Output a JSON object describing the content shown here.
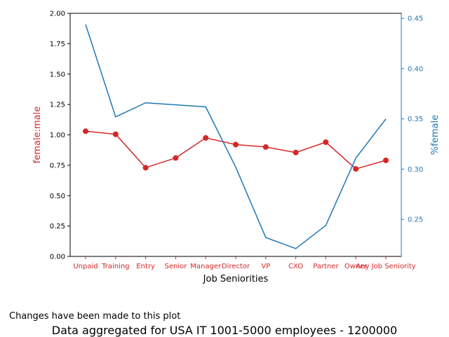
{
  "chart_data": {
    "type": "line",
    "categories": [
      "Unpaid",
      "Training",
      "Entry",
      "Senior",
      "Manager",
      "Director",
      "VP",
      "CXO",
      "Partner",
      "Owner",
      "Any Job Seniority"
    ],
    "xlabel": "Job Seniorities",
    "series": [
      {
        "axis": "left",
        "color": "#d62728",
        "marker": "circle",
        "values": [
          1.03,
          1.005,
          0.73,
          0.81,
          0.975,
          0.92,
          0.9,
          0.855,
          0.94,
          0.72,
          0.79
        ]
      },
      {
        "axis": "right",
        "color": "#1f77b4",
        "marker": "none",
        "values": [
          0.444,
          0.352,
          0.366,
          0.364,
          0.362,
          0.302,
          0.232,
          0.221,
          0.244,
          0.311,
          0.35
        ]
      }
    ],
    "y_left": {
      "label": "female:male",
      "color": "#d62728",
      "lim": [
        0,
        2.0
      ],
      "ticks": [
        "0.00",
        "0.25",
        "0.50",
        "0.75",
        "1.00",
        "1.25",
        "1.50",
        "1.75",
        "2.00"
      ]
    },
    "y_right": {
      "label": "%female",
      "color": "#1f77b4",
      "lim": [
        0.2132,
        0.455
      ],
      "ticks": [
        "0.25",
        "0.30",
        "0.35",
        "0.40",
        "0.45"
      ]
    },
    "grid": false
  },
  "note": "Changes have been made to this plot",
  "subtitle": "Data aggregated for USA IT 1001-5000 employees - 1200000"
}
